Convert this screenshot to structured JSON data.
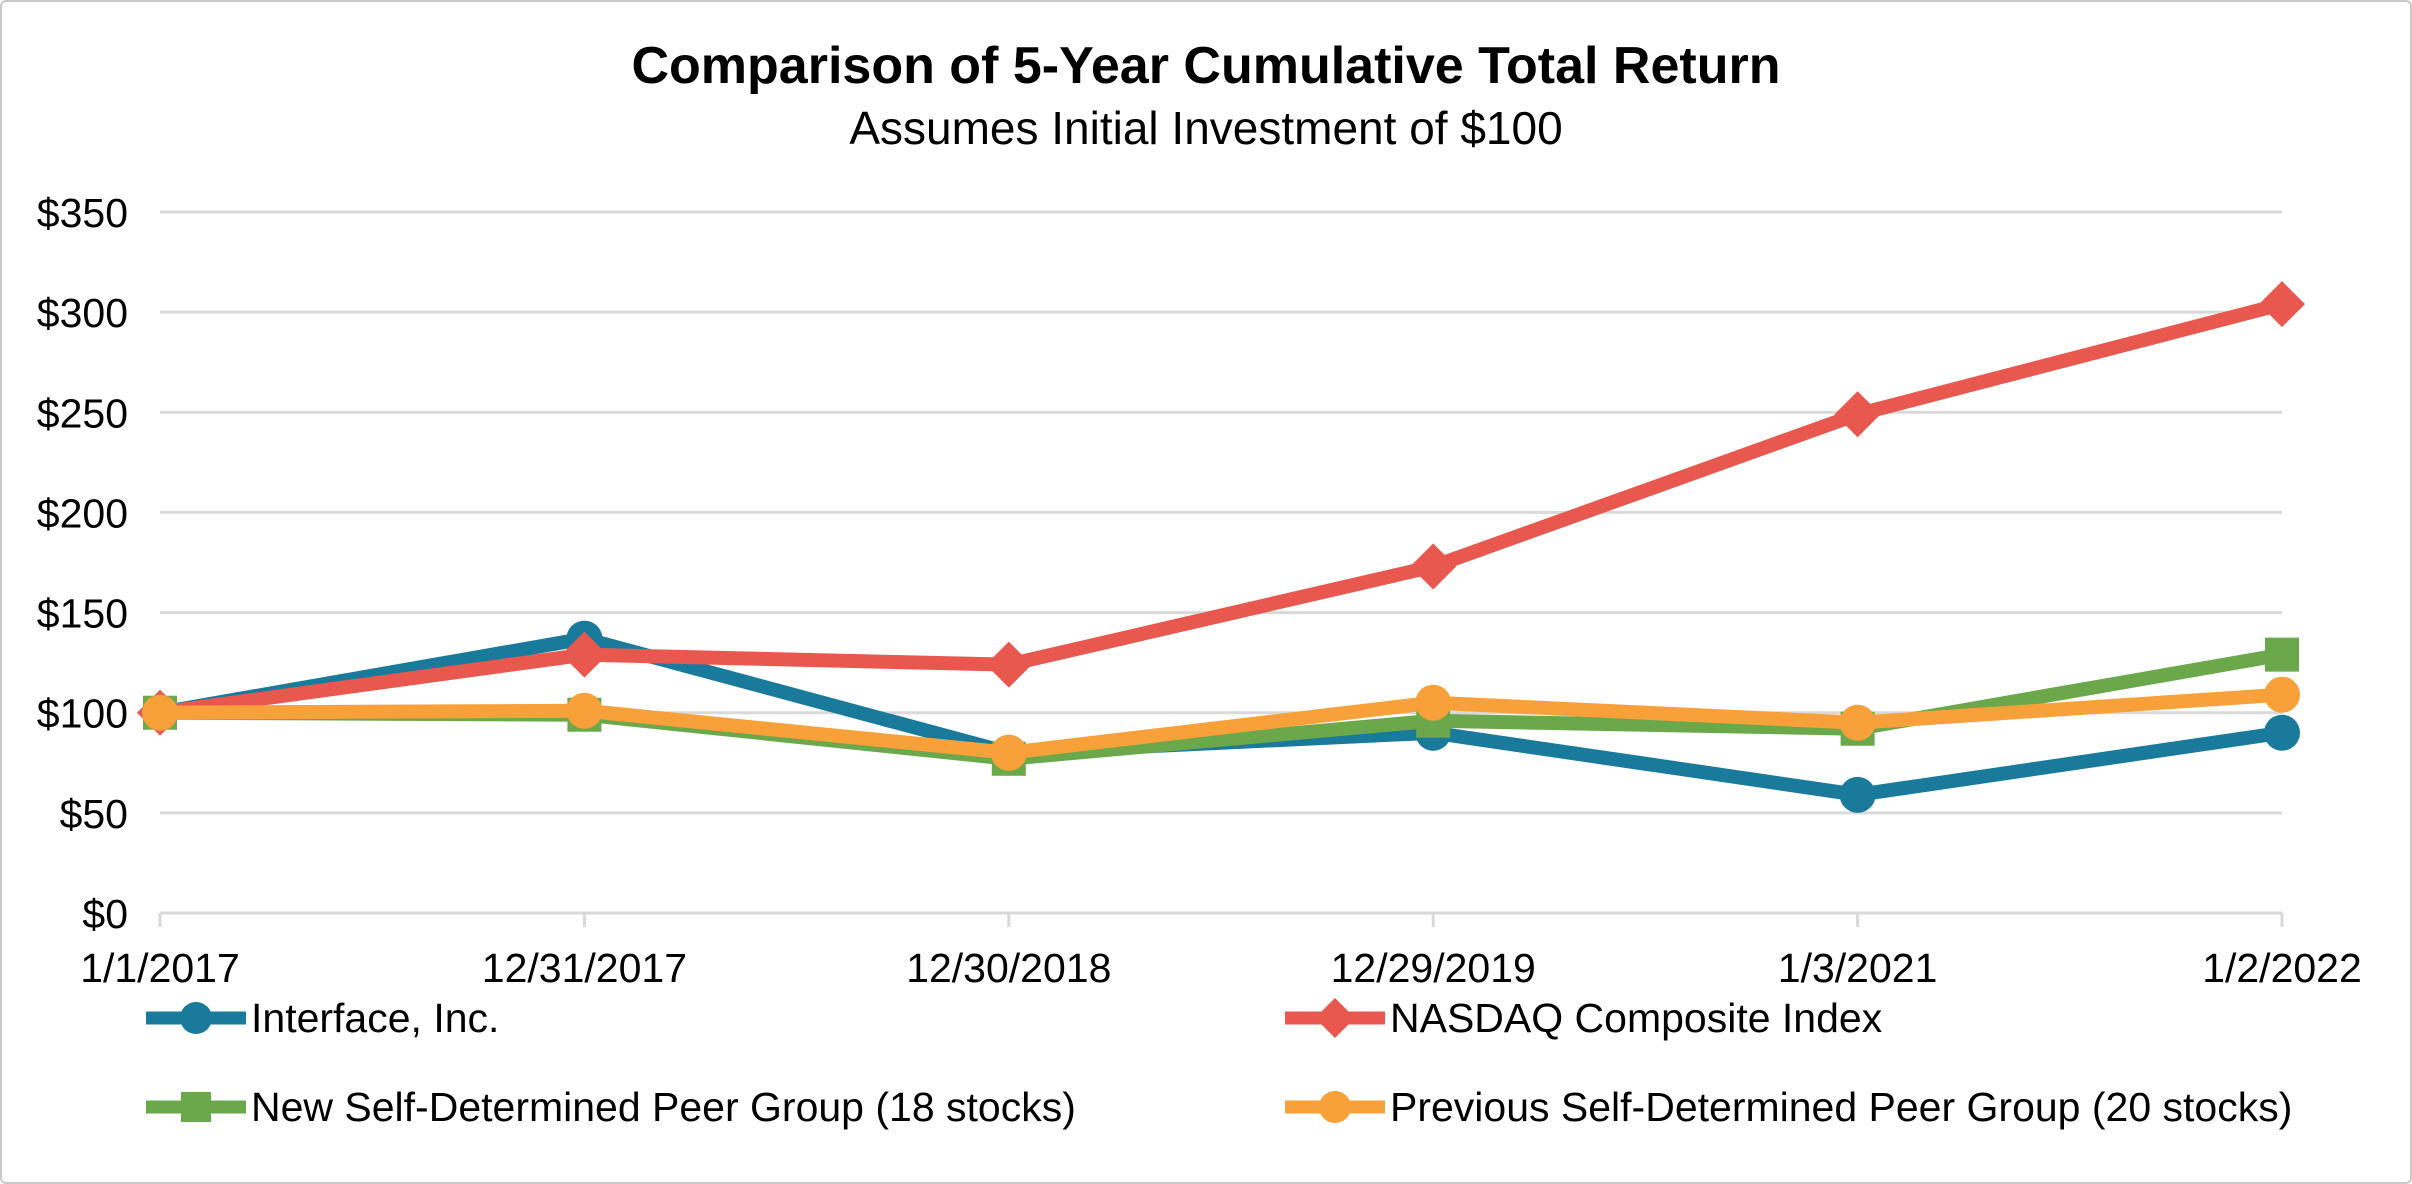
{
  "card": {
    "title": "Comparison of 5-Year Cumulative Total Return",
    "subtitle": "Assumes Initial Investment of $100"
  },
  "chart_data": {
    "type": "line",
    "title": "Comparison of 5-Year Cumulative Total Return",
    "subtitle": "Assumes Initial Investment of $100",
    "categories": [
      "1/1/2017",
      "12/31/2017",
      "12/30/2018",
      "12/29/2019",
      "1/3/2021",
      "1/2/2022"
    ],
    "series": [
      {
        "name": "Interface, Inc.",
        "marker": "circle",
        "color": "#1a7a9b",
        "values": [
          100,
          137,
          80,
          90,
          59,
          90
        ]
      },
      {
        "name": "NASDAQ Composite Index",
        "marker": "diamond",
        "color": "#e8584f",
        "values": [
          100,
          129,
          124,
          173,
          249,
          304
        ]
      },
      {
        "name": "New Self-Determined Peer Group (18 stocks)",
        "marker": "square",
        "color": "#6ba84c",
        "values": [
          100,
          99,
          77,
          96,
          92,
          129
        ]
      },
      {
        "name": "Previous Self-Determined Peer Group (20 stocks)",
        "marker": "circle",
        "color": "#f8a13a",
        "values": [
          100,
          101,
          80,
          105,
          95,
          109
        ]
      }
    ],
    "ylim": [
      0,
      350
    ],
    "ytick_step": 50,
    "ytick_labels": [
      "$0",
      "$50",
      "$100",
      "$150",
      "$200",
      "$250",
      "$300",
      "$350"
    ],
    "xlabel": "",
    "ylabel": "",
    "grid": "horizontal",
    "gridline_color": "#d9d9d9",
    "text_color": "#000000",
    "legend_position": "bottom"
  }
}
